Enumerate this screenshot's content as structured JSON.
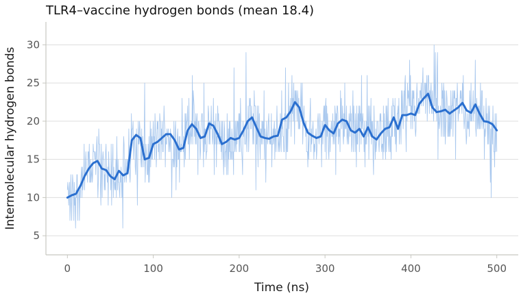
{
  "chart_data": {
    "type": "line",
    "title": "TLR4–vaccine hydrogen bonds (mean 18.4)",
    "xlabel": "Time (ns)",
    "ylabel": "Intermolecular hydrogen bonds",
    "xlim": [
      -25,
      525
    ],
    "ylim": [
      2.5,
      33
    ],
    "x_ticks": [
      0,
      100,
      200,
      300,
      400,
      500
    ],
    "y_ticks": [
      5,
      10,
      15,
      20,
      25,
      30
    ],
    "x_tick_labels": [
      "0",
      "100",
      "200",
      "300",
      "400",
      "500"
    ],
    "y_tick_labels": [
      "5",
      "10",
      "15",
      "20",
      "25",
      "30"
    ],
    "grid": "horizontal",
    "legend": "none",
    "colors": {
      "raw": "#a9c8ee",
      "smoothed": "#2a6fcf",
      "grid": "#dddddd",
      "axis": "#c7c7c0"
    },
    "series": [
      {
        "role": "raw",
        "x_step": 0.5,
        "x": [
          0,
          500
        ],
        "y_min": 4,
        "y_max": 32
      },
      {
        "role": "smoothed",
        "x": [
          0,
          5,
          10,
          15,
          20,
          25,
          30,
          35,
          40,
          45,
          50,
          55,
          60,
          65,
          70,
          75,
          80,
          85,
          90,
          95,
          100,
          105,
          110,
          115,
          120,
          125,
          130,
          135,
          140,
          145,
          150,
          155,
          160,
          165,
          170,
          175,
          180,
          185,
          190,
          195,
          200,
          205,
          210,
          215,
          220,
          225,
          230,
          235,
          240,
          245,
          250,
          255,
          260,
          265,
          270,
          275,
          280,
          285,
          290,
          295,
          300,
          305,
          310,
          315,
          320,
          325,
          330,
          335,
          340,
          345,
          350,
          355,
          360,
          365,
          370,
          375,
          380,
          385,
          390,
          395,
          400,
          405,
          410,
          415,
          420,
          425,
          430,
          435,
          440,
          445,
          450,
          455,
          460,
          465,
          470,
          475,
          480,
          485,
          490,
          495,
          500
        ],
        "values": [
          10.0,
          10.3,
          10.5,
          11.5,
          12.8,
          13.8,
          14.5,
          14.8,
          13.8,
          13.6,
          12.8,
          12.4,
          13.5,
          12.9,
          13.2,
          17.5,
          18.2,
          17.8,
          15.0,
          15.2,
          17.0,
          17.3,
          17.8,
          18.3,
          18.3,
          17.5,
          16.3,
          16.5,
          18.8,
          19.6,
          19.0,
          17.8,
          18.0,
          19.7,
          19.4,
          18.3,
          17.0,
          17.3,
          17.8,
          17.6,
          17.8,
          18.8,
          20.0,
          20.5,
          19.2,
          18.0,
          17.8,
          17.7,
          18.0,
          18.1,
          20.2,
          20.5,
          21.3,
          22.5,
          21.8,
          19.8,
          18.5,
          18.1,
          17.8,
          18.0,
          19.5,
          18.8,
          18.4,
          19.7,
          20.2,
          20.0,
          18.8,
          18.5,
          19.0,
          18.0,
          19.2,
          18.0,
          17.6,
          18.4,
          19.0,
          19.2,
          20.5,
          19.0,
          20.8,
          20.8,
          21.0,
          20.8,
          22.3,
          23.0,
          23.6,
          21.8,
          21.2,
          21.3,
          21.5,
          21.0,
          21.4,
          21.8,
          22.4,
          21.4,
          21.1,
          22.2,
          21.0,
          20.0,
          19.9,
          19.6,
          18.8
        ]
      }
    ]
  }
}
